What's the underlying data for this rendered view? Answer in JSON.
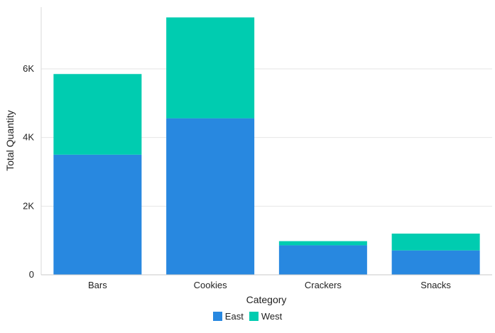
{
  "chart_data": {
    "type": "bar",
    "stacked": true,
    "categories": [
      "Bars",
      "Cookies",
      "Crackers",
      "Snacks"
    ],
    "series": [
      {
        "name": "East",
        "values": [
          3500,
          4560,
          860,
          710
        ],
        "color": "#2888e0"
      },
      {
        "name": "West",
        "values": [
          2350,
          2940,
          120,
          490
        ],
        "color": "#00ccb0"
      }
    ],
    "xlabel": "Category",
    "ylabel": "Total Quantity",
    "ylim": [
      0,
      7800
    ],
    "yticks": [
      0,
      2000,
      4000,
      6000
    ],
    "ytick_labels": [
      "0",
      "2K",
      "4K",
      "6K"
    ],
    "grid": true,
    "legend_position": "bottom"
  }
}
